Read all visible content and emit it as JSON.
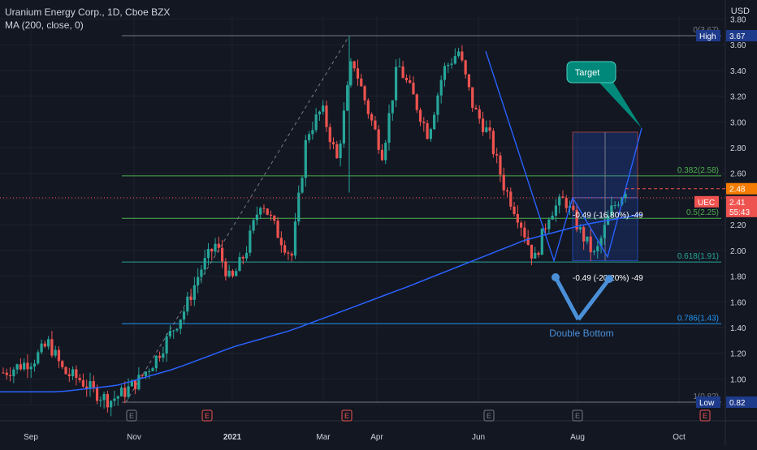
{
  "header": {
    "title": "Uranium Energy Corp., 1D, Cboe BZX",
    "indicator": "MA (200, close, 0)",
    "currency": "USD"
  },
  "colors": {
    "background": "#131722",
    "up": "#26a69a",
    "down": "#ef5350",
    "ma": "#2962ff",
    "fib_green": "#4caf50",
    "fib_teal": "#26a69a",
    "fib_blue": "#2196f3",
    "fib_gray": "#787b86",
    "text": "#d1d4dc",
    "pattern_line": "#2962ff",
    "annotation": "#4a90d9",
    "callout": "#00897b"
  },
  "chart_data": {
    "type": "candlestick",
    "ylim": [
      0.8,
      3.85
    ],
    "y_ticks": [
      "0.80",
      "1.00",
      "1.20",
      "1.40",
      "1.60",
      "1.80",
      "2.00",
      "2.20",
      "2.40",
      "2.60",
      "2.80",
      "3.00",
      "3.20",
      "3.40",
      "3.60",
      "3.80"
    ],
    "x_ticks": [
      "Sep",
      "Nov",
      "2021",
      "Mar",
      "Apr",
      "Jun",
      "Aug",
      "Oct"
    ],
    "price_path": [
      [
        "Aug",
        1.05
      ],
      [
        "Sep",
        1.1
      ],
      [
        "Sep",
        1.15
      ],
      [
        "Sep",
        1.28
      ],
      [
        "Oct",
        1.05
      ],
      [
        "Oct",
        1.0
      ],
      [
        "Nov",
        0.9
      ],
      [
        "Nov",
        0.83
      ],
      [
        "Nov",
        0.9
      ],
      [
        "Dec",
        1.0
      ],
      [
        "Dec",
        1.15
      ],
      [
        "Dec",
        1.35
      ],
      [
        "2021",
        1.55
      ],
      [
        "2021",
        1.85
      ],
      [
        "Jan",
        2.05
      ],
      [
        "Feb",
        1.75
      ],
      [
        "Feb",
        2.0
      ],
      [
        "Feb",
        2.4
      ],
      [
        "Mar",
        2.15
      ],
      [
        "Mar",
        1.95
      ],
      [
        "Mar",
        2.9
      ],
      [
        "Mar",
        3.1
      ],
      [
        "Apr",
        2.7
      ],
      [
        "Apr",
        3.5
      ],
      [
        "Apr",
        3.1
      ],
      [
        "Apr",
        2.75
      ],
      [
        "May",
        3.45
      ],
      [
        "May",
        3.2
      ],
      [
        "May",
        2.9
      ],
      [
        "Jun",
        3.4
      ],
      [
        "Jun",
        3.55
      ],
      [
        "Jun",
        3.1
      ],
      [
        "Jun",
        2.9
      ],
      [
        "Jul",
        2.5
      ],
      [
        "Jul",
        2.25
      ],
      [
        "Jul",
        1.92
      ],
      [
        "Jul",
        2.3
      ],
      [
        "Aug",
        2.4
      ],
      [
        "Aug",
        2.15
      ],
      [
        "Aug",
        1.95
      ],
      [
        "Aug",
        2.3
      ],
      [
        "Aug",
        2.48
      ]
    ],
    "ma200_path": [
      [
        "Aug",
        0.9
      ],
      [
        "Nov",
        0.9
      ],
      [
        "Dec",
        0.95
      ],
      [
        "2021",
        1.08
      ],
      [
        "Feb",
        1.25
      ],
      [
        "Mar",
        1.38
      ],
      [
        "Apr",
        1.55
      ],
      [
        "May",
        1.72
      ],
      [
        "Jun",
        1.9
      ],
      [
        "Jul",
        2.08
      ],
      [
        "Aug",
        2.2
      ],
      [
        "Aug",
        2.28
      ]
    ],
    "fib_levels": [
      {
        "label": "0(3.67)",
        "value": 3.67
      },
      {
        "label": "0.382(2.58)",
        "value": 2.58
      },
      {
        "label": "0.5(2.25)",
        "value": 2.25
      },
      {
        "label": "0.618(1.91)",
        "value": 1.91
      },
      {
        "label": "0.786(1.43)",
        "value": 1.43
      },
      {
        "label": "1(0.82)",
        "value": 0.82
      }
    ],
    "price_tags": [
      {
        "label": "High",
        "value": "3.67"
      },
      {
        "label": "",
        "value": "2.48"
      },
      {
        "label": "UEC",
        "value": "2.41",
        "sub": "55:43"
      },
      {
        "label": "Low",
        "value": "0.82"
      }
    ],
    "measure_texts": [
      "-0.49 (-16.80%) -49",
      "-0.49 (-20.20%) -49"
    ],
    "annotations": {
      "target": "Target",
      "double_bottom": "Double Bottom"
    },
    "events": [
      "E",
      "E",
      "E",
      "E",
      "E",
      "E"
    ]
  }
}
